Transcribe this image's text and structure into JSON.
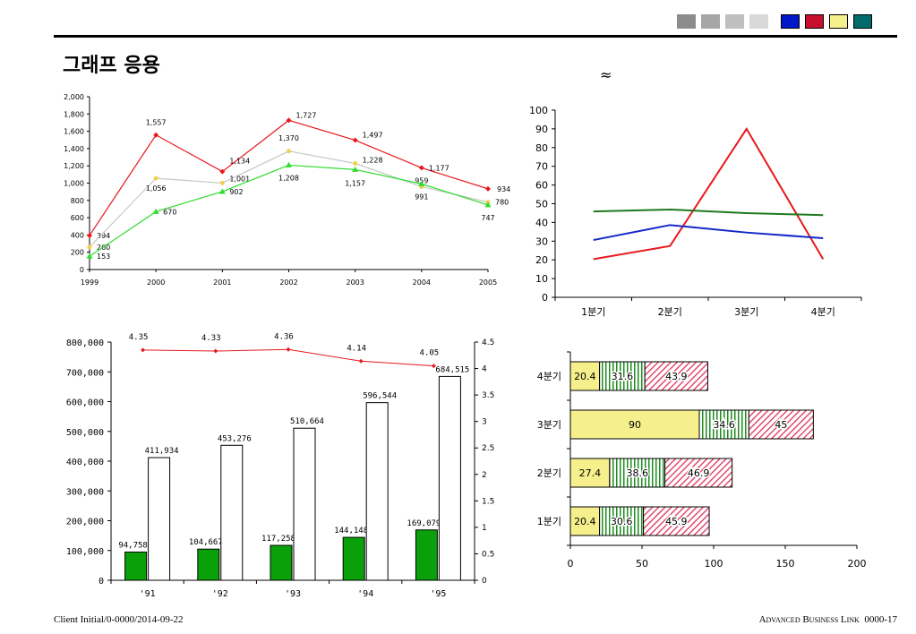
{
  "header": {
    "title": "그래프 응용",
    "approx_symbol": "≈",
    "swatch_colors": [
      "#8c8c8c",
      "#a6a6a6",
      "#bfbfbf",
      "#d9d9d9",
      "#0019c8",
      "#c8102e",
      "#f5f08c",
      "#006b6b"
    ]
  },
  "footer": {
    "left": "Client Initial/0-0000/2014-09-22",
    "brand": "Advanced Business Link",
    "page": "0000-17"
  },
  "chart_data": [
    {
      "type": "line",
      "x": [
        "1999",
        "2000",
        "2001",
        "2002",
        "2003",
        "2004",
        "2005"
      ],
      "ylim": [
        0,
        2000
      ],
      "yticks": [
        "0",
        "200",
        "400",
        "600",
        "800",
        "1,000",
        "1,200",
        "1,400",
        "1,600",
        "1,800",
        "2,000"
      ],
      "series": [
        {
          "color": "#e8191e",
          "values": [
            394,
            1557,
            1134,
            1727,
            1497,
            1177,
            934
          ],
          "labels": [
            "394",
            "1,557",
            "1,134",
            "1,727",
            "1,497",
            "1,177",
            "934"
          ]
        },
        {
          "color": "#c8c8c8",
          "values": [
            260,
            1056,
            1001,
            1370,
            1228,
            959,
            780
          ],
          "labels": [
            "260",
            "1,056",
            "1,001",
            "1,370",
            "1,228",
            "959",
            "780"
          ]
        },
        {
          "color": "#2edc2e",
          "values": [
            153,
            670,
            902,
            1208,
            1157,
            991,
            747
          ],
          "labels": [
            "153",
            "670",
            "902",
            "1,208",
            "1,157",
            "991",
            "747"
          ]
        }
      ]
    },
    {
      "type": "line",
      "categories": [
        "1분기",
        "2분기",
        "3분기",
        "4분기"
      ],
      "ylim": [
        0,
        100
      ],
      "yticks": [
        "0",
        "10",
        "20",
        "30",
        "40",
        "50",
        "60",
        "70",
        "80",
        "90",
        "100"
      ],
      "series": [
        {
          "color": "#e8191e",
          "values": [
            20.4,
            27.4,
            90,
            20.4
          ]
        },
        {
          "color": "#1428c8",
          "values": [
            30.6,
            38.6,
            34.6,
            31.6
          ]
        },
        {
          "color": "#1e7a1e",
          "values": [
            45.9,
            46.9,
            45,
            43.9
          ]
        }
      ]
    },
    {
      "type": "bar",
      "categories": [
        "'91",
        "'92",
        "'93",
        "'94",
        "'95"
      ],
      "ylim": [
        0,
        800000
      ],
      "yticks": [
        "0",
        "100,000",
        "200,000",
        "300,000",
        "400,000",
        "500,000",
        "600,000",
        "700,000",
        "800,000"
      ],
      "y2lim": [
        0,
        4.5
      ],
      "y2ticks": [
        "0",
        "0.5",
        "1",
        "1.5",
        "2",
        "2.5",
        "3",
        "3.5",
        "4",
        "4.5"
      ],
      "series": [
        {
          "type": "bar",
          "color": "#0aa00a",
          "values": [
            94758,
            104667,
            117258,
            144148,
            169079
          ],
          "labels": [
            "94,758",
            "104,667",
            "117,258",
            "144,148",
            "169,079"
          ]
        },
        {
          "type": "bar",
          "color": "#ffffff",
          "values": [
            411934,
            453276,
            510664,
            596544,
            684515
          ],
          "labels": [
            "411,934",
            "453,276",
            "510,664",
            "596,544",
            "684,515"
          ]
        },
        {
          "type": "line",
          "axis": "right",
          "color": "#e8191e",
          "values": [
            4.35,
            4.33,
            4.36,
            4.14,
            4.05
          ],
          "labels": [
            "4.35",
            "4.33",
            "4.36",
            "4.14",
            "4.05"
          ]
        }
      ]
    },
    {
      "type": "bar",
      "orientation": "horizontal",
      "stacked": true,
      "categories": [
        "4분기",
        "3분기",
        "2분기",
        "1분기"
      ],
      "xlim": [
        0,
        200
      ],
      "xticks": [
        "0",
        "50",
        "100",
        "150",
        "200"
      ],
      "series": [
        {
          "color": "#f5f08c",
          "values": [
            20.4,
            90,
            27.4,
            20.4
          ],
          "labels": [
            "20.4",
            "90",
            "27.4",
            "20.4"
          ]
        },
        {
          "color": "#1e8c1e",
          "pattern": "vertical-stripes",
          "values": [
            31.6,
            34.6,
            38.6,
            30.6
          ],
          "labels": [
            "31.6",
            "34.6",
            "38.6",
            "30.6"
          ]
        },
        {
          "color": "#c8102e",
          "pattern": "hatch",
          "values": [
            43.9,
            45,
            46.9,
            45.9
          ],
          "labels": [
            "43.9",
            "45",
            "46.9",
            "45.9"
          ]
        }
      ]
    }
  ]
}
